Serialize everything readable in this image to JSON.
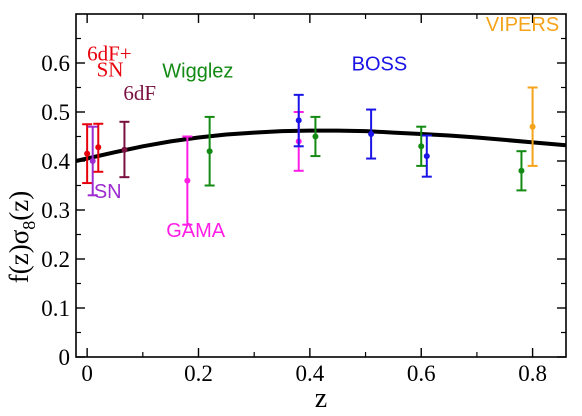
{
  "chart_data": {
    "type": "scatter",
    "xlabel": "z",
    "ylabel": "f(z)σ8(z)",
    "ylabel_parts": {
      "base": "f(z)σ",
      "sub": "8",
      "tail": "(z)"
    },
    "xlim": [
      -0.02,
      0.86
    ],
    "ylim": [
      0,
      0.7
    ],
    "x_ticks": [
      0,
      0.2,
      0.4,
      0.6,
      0.8
    ],
    "x_tick_labels": [
      "0",
      "0.2",
      "0.4",
      "0.6",
      "0.8"
    ],
    "y_ticks": [
      0,
      0.1,
      0.2,
      0.3,
      0.4,
      0.5,
      0.6
    ],
    "y_tick_labels": [
      "0",
      "0.1",
      "0.2",
      "0.3",
      "0.4",
      "0.5",
      "0.6"
    ],
    "grid": false,
    "model_curve": {
      "color": "#000000",
      "x": [
        -0.02,
        0.0,
        0.05,
        0.1,
        0.15,
        0.2,
        0.25,
        0.3,
        0.35,
        0.4,
        0.45,
        0.5,
        0.55,
        0.6,
        0.65,
        0.7,
        0.75,
        0.8,
        0.86
      ],
      "y": [
        0.4,
        0.405,
        0.418,
        0.43,
        0.44,
        0.448,
        0.454,
        0.458,
        0.461,
        0.462,
        0.462,
        0.461,
        0.458,
        0.455,
        0.452,
        0.448,
        0.443,
        0.438,
        0.432
      ]
    },
    "series": [
      {
        "name": "6dF+SN",
        "color": "#e8000b",
        "points": [
          {
            "x": 0.0,
            "y": 0.415,
            "err_low": 0.355,
            "err_high": 0.475
          },
          {
            "x": 0.02,
            "y": 0.428,
            "err_low": 0.378,
            "err_high": 0.476
          }
        ]
      },
      {
        "name": "SN",
        "color": "#9d2bd1",
        "points": [
          {
            "x": 0.01,
            "y": 0.4,
            "err_low": 0.33,
            "err_high": 0.47
          }
        ]
      },
      {
        "name": "6dF",
        "color": "#7a1040",
        "points": [
          {
            "x": 0.067,
            "y": 0.423,
            "err_low": 0.367,
            "err_high": 0.48
          }
        ]
      },
      {
        "name": "GAMA",
        "color": "#ff1ee6",
        "points": [
          {
            "x": 0.18,
            "y": 0.36,
            "err_low": 0.27,
            "err_high": 0.45
          },
          {
            "x": 0.38,
            "y": 0.44,
            "err_low": 0.38,
            "err_high": 0.5
          }
        ]
      },
      {
        "name": "Wigglez",
        "color": "#138a13",
        "points": [
          {
            "x": 0.22,
            "y": 0.42,
            "err_low": 0.35,
            "err_high": 0.49
          },
          {
            "x": 0.41,
            "y": 0.45,
            "err_low": 0.41,
            "err_high": 0.49
          },
          {
            "x": 0.6,
            "y": 0.43,
            "err_low": 0.39,
            "err_high": 0.47
          },
          {
            "x": 0.78,
            "y": 0.38,
            "err_low": 0.34,
            "err_high": 0.42
          }
        ]
      },
      {
        "name": "BOSS",
        "color": "#1a14e6",
        "points": [
          {
            "x": 0.38,
            "y": 0.483,
            "err_low": 0.43,
            "err_high": 0.535
          },
          {
            "x": 0.51,
            "y": 0.455,
            "err_low": 0.405,
            "err_high": 0.505
          },
          {
            "x": 0.61,
            "y": 0.41,
            "err_low": 0.368,
            "err_high": 0.452
          }
        ]
      },
      {
        "name": "VIPERS",
        "color": "#f5a31a",
        "points": [
          {
            "x": 0.8,
            "y": 0.47,
            "err_low": 0.39,
            "err_high": 0.55
          }
        ]
      }
    ],
    "annotations": [
      {
        "id": "6dF+",
        "text": "6dF+",
        "color": "#e8000b",
        "font": "serif",
        "anchor": "start",
        "x": 0.0,
        "y": 0.605
      },
      {
        "id": "SN-red",
        "text": "SN",
        "color": "#e8000b",
        "font": "serif",
        "anchor": "start",
        "x": 0.017,
        "y": 0.572
      },
      {
        "id": "SN-purple",
        "text": "SN",
        "color": "#9d2bd1",
        "font": "sans",
        "anchor": "start",
        "x": 0.012,
        "y": 0.325
      },
      {
        "id": "6dF",
        "text": "6dF",
        "color": "#7a1040",
        "font": "serif",
        "anchor": "start",
        "x": 0.065,
        "y": 0.525
      },
      {
        "id": "Wigglez",
        "text": "Wigglez",
        "color": "#138a13",
        "font": "sans",
        "anchor": "start",
        "x": 0.135,
        "y": 0.57
      },
      {
        "id": "GAMA",
        "text": "GAMA",
        "color": "#ff1ee6",
        "font": "sans",
        "anchor": "start",
        "x": 0.142,
        "y": 0.245
      },
      {
        "id": "BOSS",
        "text": "BOSS",
        "color": "#1a14e6",
        "font": "sans",
        "anchor": "start",
        "x": 0.475,
        "y": 0.585
      },
      {
        "id": "VIPERS",
        "text": "VIPERS",
        "color": "#f5a31a",
        "font": "sans",
        "anchor": "start",
        "x": 0.716,
        "y": 0.665
      }
    ]
  }
}
